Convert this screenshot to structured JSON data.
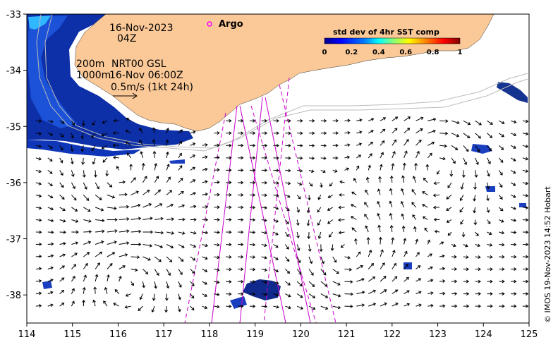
{
  "map": {
    "date_line": "16-Nov-2023",
    "hour_line": "04Z",
    "contour_200": "200m",
    "contour_1000": "1000m",
    "current_source": "NRT00 GSL",
    "current_time": "16-Nov 06:00Z",
    "scale_label": "0.5m/s (1kt 24h)",
    "argo_label": "Argo",
    "credit": "© IMOS 19-Nov-2023 14:52 Hobart",
    "lon_ticks": [
      "114",
      "115",
      "116",
      "117",
      "118",
      "119",
      "120",
      "121",
      "122",
      "123",
      "124",
      "125"
    ],
    "lat_ticks": [
      "-33",
      "-34",
      "-35",
      "-36",
      "-37",
      "-38"
    ],
    "lon_range": [
      114,
      125
    ],
    "lat_range": [
      -38.5,
      -33
    ],
    "land_color": "#fbc998",
    "track_color": "#cc00cc",
    "argo_color": "#ff00ff"
  },
  "legend": {
    "title": "std dev of 4hr SST comp",
    "ticks": [
      "0",
      "0.2",
      "0.4",
      "0.6",
      "0.8",
      "1"
    ],
    "colormap": [
      "#00008f",
      "#0000ff",
      "#0080ff",
      "#00ffff",
      "#80ff80",
      "#ffff00",
      "#ff8000",
      "#ff0000",
      "#800000"
    ]
  }
}
